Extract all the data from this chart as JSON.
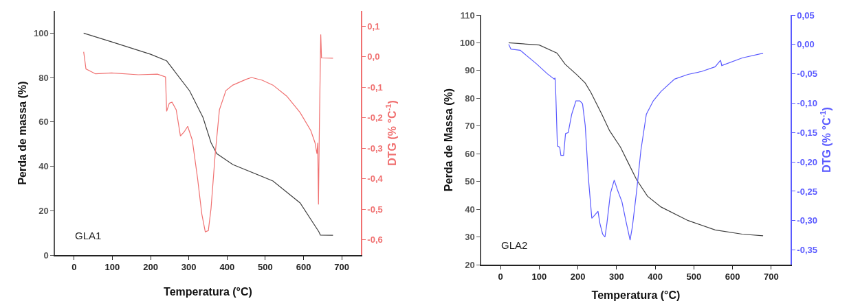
{
  "chart_data": [
    {
      "type": "line",
      "xlabel": "Temperatura (°C)",
      "ylabel": "Perda de massa (%)",
      "y2label": "DTG (% °C$^{-1}$)",
      "annotations": [
        "GLA1"
      ],
      "grid": false,
      "xlim": [
        -50,
        750
      ],
      "xticks": [
        0,
        100,
        200,
        300,
        400,
        500,
        600,
        700
      ],
      "ylim": [
        0,
        110
      ],
      "yticks": [
        0,
        20,
        40,
        60,
        80,
        100
      ],
      "y2lim": [
        -0.65,
        0.15
      ],
      "y2ticks": [
        {
          "value": 0.1,
          "label": "0,1"
        },
        {
          "value": 0,
          "label": "0,0"
        },
        {
          "value": -0.1,
          "label": "-0,1"
        },
        {
          "value": -0.2,
          "label": "-0,2"
        },
        {
          "value": -0.3,
          "label": "-0,3"
        },
        {
          "value": -0.4,
          "label": "-0,4"
        },
        {
          "value": -0.5,
          "label": "-0,5"
        },
        {
          "value": -0.6,
          "label": "-0,6"
        }
      ],
      "series": [
        {
          "color": "#404040",
          "x": [
            25,
            100,
            200,
            242,
            302,
            337,
            358,
            373,
            415,
            520,
            591,
            640,
            644,
            677
          ],
          "values": [
            100,
            96,
            90.5,
            87.5,
            74,
            62,
            50.7,
            45.7,
            40.8,
            33.4,
            23.5,
            10.5,
            9,
            8.9
          ]
        },
        {
          "color": "#f07070",
          "axis": "y2",
          "x": [
            25,
            31,
            56,
            98,
            168,
            218,
            239,
            242,
            249,
            256,
            267,
            278,
            288,
            297,
            309,
            323,
            334,
            343,
            351,
            358,
            369,
            380,
            397,
            415,
            450,
            464,
            492,
            520,
            556,
            591,
            619,
            630,
            635,
            637,
            639,
            641,
            645,
            647,
            677
          ],
          "values": [
            0.016,
            -0.04,
            -0.056,
            -0.053,
            -0.059,
            -0.057,
            -0.066,
            -0.179,
            -0.152,
            -0.149,
            -0.174,
            -0.26,
            -0.246,
            -0.228,
            -0.273,
            -0.4,
            -0.516,
            -0.574,
            -0.57,
            -0.498,
            -0.318,
            -0.174,
            -0.111,
            -0.093,
            -0.074,
            -0.068,
            -0.077,
            -0.093,
            -0.129,
            -0.183,
            -0.242,
            -0.282,
            -0.318,
            -0.282,
            -0.484,
            -0.264,
            0.073,
            -0.004,
            -0.005
          ]
        }
      ]
    },
    {
      "type": "line",
      "xlabel": "Temperatura (°C)",
      "ylabel": "Perda de Massa (%)",
      "y2label": "DTG (% °C$^{-1}$)",
      "annotations": [
        "GLA2"
      ],
      "grid": false,
      "xlim": [
        -50,
        750
      ],
      "xticks": [
        0,
        100,
        200,
        300,
        400,
        500,
        600,
        700
      ],
      "ylim": [
        20,
        110
      ],
      "yticks": [
        20,
        30,
        40,
        50,
        60,
        70,
        80,
        90,
        100,
        110
      ],
      "y2lim": [
        -0.375,
        0.05
      ],
      "y2ticks": [
        {
          "value": 0.05,
          "label": "0,05"
        },
        {
          "value": 0,
          "label": "0,00"
        },
        {
          "value": -0.05,
          "label": "-0,05"
        },
        {
          "value": -0.1,
          "label": "-0,10"
        },
        {
          "value": -0.15,
          "label": "-0,15"
        },
        {
          "value": -0.2,
          "label": "-0,20"
        },
        {
          "value": -0.25,
          "label": "-0,25"
        },
        {
          "value": -0.3,
          "label": "-0,30"
        },
        {
          "value": -0.35,
          "label": "-0,35"
        }
      ],
      "series": [
        {
          "color": "#404040",
          "x": [
            21,
            100,
            146,
            167,
            198,
            219,
            234,
            262,
            282,
            310,
            331,
            352,
            380,
            415,
            485,
            555,
            625,
            679
          ],
          "values": [
            100,
            99.2,
            96.3,
            92.3,
            88.4,
            85.5,
            82,
            74.2,
            68.3,
            62.4,
            56.5,
            50.6,
            44.7,
            40.8,
            35.9,
            32.5,
            31,
            30.4
          ]
        },
        {
          "color": "#5a5aff",
          "axis": "y2",
          "x": [
            21,
            27,
            51,
            93,
            121,
            139,
            141,
            143,
            147,
            153,
            156,
            163,
            168,
            175,
            184,
            195,
            205,
            212,
            219,
            227,
            236,
            243,
            252,
            257,
            264,
            270,
            275,
            284,
            294,
            303,
            314,
            324,
            335,
            341,
            352,
            363,
            377,
            395,
            415,
            450,
            485,
            520,
            555,
            569,
            572,
            625,
            679
          ],
          "values": [
            0,
            -0.008,
            -0.01,
            -0.033,
            -0.05,
            -0.059,
            -0.057,
            -0.087,
            -0.173,
            -0.175,
            -0.189,
            -0.189,
            -0.152,
            -0.15,
            -0.119,
            -0.096,
            -0.096,
            -0.101,
            -0.138,
            -0.226,
            -0.296,
            -0.291,
            -0.284,
            -0.305,
            -0.323,
            -0.328,
            -0.305,
            -0.254,
            -0.231,
            -0.249,
            -0.268,
            -0.3,
            -0.333,
            -0.31,
            -0.249,
            -0.18,
            -0.119,
            -0.096,
            -0.08,
            -0.059,
            -0.051,
            -0.046,
            -0.038,
            -0.027,
            -0.036,
            -0.023,
            -0.015
          ]
        }
      ]
    }
  ]
}
